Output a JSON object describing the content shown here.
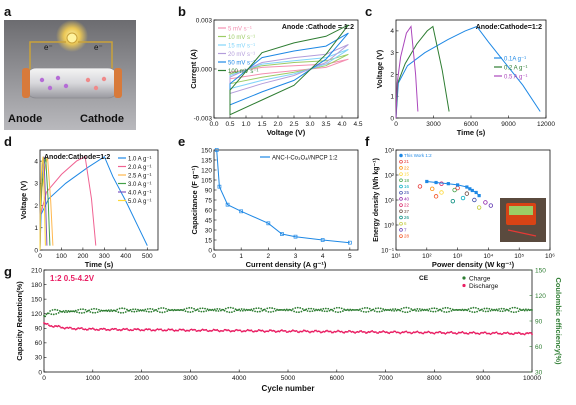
{
  "panel_letters": {
    "a": "a",
    "b": "b",
    "c": "c",
    "d": "d",
    "e": "e",
    "f": "f",
    "g": "g"
  },
  "schematic": {
    "anode_label": "Anode",
    "cathode_label": "Cathode",
    "electron_label": "e⁻"
  },
  "chart_data": [
    {
      "id": "b",
      "type": "line",
      "annotation": "Anode :Cathode = 1:2",
      "xlabel": "Voltage (V)",
      "ylabel": "Current (A)",
      "xlim": [
        0.0,
        4.5
      ],
      "ylim": [
        -0.003,
        0.003
      ],
      "xticks": [
        "0.0",
        "0.5",
        "1.0",
        "1.5",
        "2.0",
        "2.5",
        "3.0",
        "3.5",
        "4.0",
        "4.5"
      ],
      "yticks": [
        "-0.003",
        "0.000",
        "0.003"
      ],
      "legend": "top-left",
      "series": [
        {
          "name": "5 mV s⁻¹",
          "color": "#f48fb1",
          "x": [
            0.5,
            1.5,
            2.5,
            3.5,
            4.2,
            3.5,
            2.5,
            1.5,
            0.5
          ],
          "y": [
            -0.0002,
            0.0001,
            0.0002,
            0.0003,
            0.0006,
            0.0001,
            -0.0001,
            -0.0003,
            -0.0006
          ]
        },
        {
          "name": "10 mV s⁻¹",
          "color": "#9ccc65",
          "x": [
            0.5,
            1.5,
            2.5,
            3.5,
            4.2,
            3.5,
            2.5,
            1.5,
            0.5
          ],
          "y": [
            -0.0003,
            0.0002,
            0.0004,
            0.0005,
            0.0009,
            0.0002,
            -0.0002,
            -0.0005,
            -0.0009
          ]
        },
        {
          "name": "15 mV s⁻¹",
          "color": "#81d4fa",
          "x": [
            0.5,
            1.5,
            2.5,
            3.5,
            4.2,
            3.5,
            2.5,
            1.5,
            0.5
          ],
          "y": [
            -0.0004,
            0.0003,
            0.0005,
            0.0007,
            0.0012,
            0.0003,
            -0.0003,
            -0.0007,
            -0.0012
          ]
        },
        {
          "name": "20 mV s⁻¹",
          "color": "#b39ddb",
          "x": [
            0.5,
            1.5,
            2.5,
            3.5,
            4.2,
            3.5,
            2.5,
            1.5,
            0.5
          ],
          "y": [
            -0.0005,
            0.0004,
            0.0007,
            0.0009,
            0.0015,
            0.0004,
            -0.0004,
            -0.0009,
            -0.0015
          ]
        },
        {
          "name": "50 mV s⁻¹",
          "color": "#1e88e5",
          "x": [
            0.5,
            1.5,
            2.5,
            3.5,
            4.2,
            3.5,
            2.5,
            1.5,
            0.5
          ],
          "y": [
            -0.0009,
            0.0007,
            0.0011,
            0.0014,
            0.0022,
            0.0006,
            -0.0007,
            -0.0014,
            -0.0022
          ]
        },
        {
          "name": "100 mV s⁻¹",
          "color": "#2e7d32",
          "x": [
            0.5,
            1.5,
            2.5,
            3.5,
            4.2,
            3.5,
            2.5,
            1.5,
            0.5
          ],
          "y": [
            -0.0013,
            0.001,
            0.0016,
            0.002,
            0.0027,
            0.0009,
            -0.001,
            -0.0019,
            -0.0028
          ]
        }
      ]
    },
    {
      "id": "c",
      "type": "line",
      "annotation": "Anode:Cathode=1:2",
      "xlabel": "Time (s)",
      "ylabel": "Voltage (V)",
      "xlim": [
        0,
        13000
      ],
      "ylim": [
        0,
        4.5
      ],
      "xticks": [
        "0",
        "3000",
        "6000",
        "9000",
        "12000"
      ],
      "yticks": [
        "0",
        "1",
        "2",
        "3",
        "4"
      ],
      "legend": "right",
      "series": [
        {
          "name": "0.1A g⁻¹",
          "color": "#1e88e5",
          "x": [
            0,
            200,
            1000,
            2500,
            4500,
            6000,
            7000,
            8000,
            9500,
            11000,
            12500
          ],
          "y": [
            0,
            1.6,
            2.4,
            3.0,
            3.6,
            4.0,
            4.2,
            3.5,
            2.5,
            1.5,
            0.3
          ]
        },
        {
          "name": "0.2 A g⁻¹",
          "color": "#2e7d32",
          "x": [
            0,
            150,
            800,
            1800,
            2700,
            3200,
            4000,
            4600
          ],
          "y": [
            0,
            1.6,
            2.5,
            3.4,
            4.0,
            4.2,
            2.2,
            0.3
          ]
        },
        {
          "name": "0.5 A g⁻¹",
          "color": "#ab47bc",
          "x": [
            0,
            100,
            400,
            900,
            1300,
            1700,
            1900
          ],
          "y": [
            0,
            1.6,
            2.8,
            3.9,
            4.2,
            2.0,
            0.3
          ]
        }
      ]
    },
    {
      "id": "d",
      "type": "line",
      "annotation": "Anode:Cathode=1:2",
      "xlabel": "Time (s)",
      "ylabel": "Voltage (V)",
      "xlim": [
        0,
        550
      ],
      "ylim": [
        0,
        4.5
      ],
      "xticks": [
        "0",
        "100",
        "200",
        "300",
        "400",
        "500"
      ],
      "yticks": [
        "0",
        "1",
        "2",
        "3",
        "4"
      ],
      "legend": "top-right",
      "series": [
        {
          "name": "1.0 A g⁻¹",
          "color": "#1e88e5",
          "x": [
            0,
            5,
            40,
            120,
            220,
            300,
            340,
            400,
            460,
            500
          ],
          "y": [
            0,
            1.6,
            2.3,
            3.0,
            3.7,
            4.2,
            3.3,
            2.2,
            1.0,
            0.2
          ]
        },
        {
          "name": "2.0 A g⁻¹",
          "color": "#f06292",
          "x": [
            0,
            3,
            30,
            100,
            170,
            210,
            240,
            260
          ],
          "y": [
            0,
            1.6,
            2.6,
            3.4,
            4.0,
            4.2,
            2.3,
            0.2
          ]
        },
        {
          "name": "2.5 A g⁻¹",
          "color": "#ffb74d",
          "x": [
            0,
            2,
            10,
            25,
            35,
            50,
            60
          ],
          "y": [
            0,
            1.6,
            2.8,
            3.8,
            4.2,
            2.2,
            0.2
          ]
        },
        {
          "name": "3.0 A g⁻¹",
          "color": "#43a047",
          "x": [
            0,
            2,
            8,
            18,
            26,
            38,
            46
          ],
          "y": [
            0,
            1.6,
            2.8,
            3.8,
            4.2,
            2.2,
            0.2
          ]
        },
        {
          "name": "4.0 A g⁻¹",
          "color": "#7e57c2",
          "x": [
            0,
            1,
            5,
            12,
            18,
            26,
            32
          ],
          "y": [
            0,
            1.6,
            2.9,
            3.9,
            4.2,
            2.2,
            0.2
          ]
        },
        {
          "name": "5.0 A g⁻¹",
          "color": "#fdd835",
          "x": [
            0,
            1,
            4,
            9,
            14,
            20,
            25
          ],
          "y": [
            0,
            1.6,
            2.9,
            3.9,
            4.2,
            2.2,
            0.2
          ]
        }
      ]
    },
    {
      "id": "e",
      "type": "line",
      "legend_label": "ANC-I-Co₃O₄//NPCP 1:2",
      "xlabel": "Current density (A g⁻¹)",
      "ylabel": "Capacitance (F g⁻¹)",
      "xlim": [
        0,
        5.3
      ],
      "ylim": [
        0,
        150
      ],
      "xticks": [
        "0",
        "1",
        "2",
        "3",
        "4",
        "5"
      ],
      "yticks": [
        "0",
        "15",
        "30",
        "45",
        "60",
        "75",
        "90",
        "105",
        "120",
        "135",
        "150"
      ],
      "color": "#1e88e5",
      "x": [
        0.1,
        0.2,
        0.5,
        1.0,
        2.0,
        2.5,
        3.0,
        4.0,
        5.0
      ],
      "y": [
        150,
        95,
        68,
        58,
        40,
        24,
        20,
        15,
        11
      ]
    },
    {
      "id": "f",
      "type": "scatter",
      "xlabel": "Power density (W kg⁻¹)",
      "ylabel": "Energy density (Wh kg⁻¹)",
      "xscale": "log",
      "yscale": "log",
      "xlim": [
        10,
        1000000
      ],
      "ylim": [
        0.1,
        1000
      ],
      "xticks": [
        "10¹",
        "10²",
        "10³",
        "10⁴",
        "10⁵",
        "10⁶"
      ],
      "yticks": [
        "10⁻¹",
        "10⁰",
        "10¹",
        "10²",
        "10³"
      ],
      "highlight": {
        "name": "This Work 1:2",
        "color": "#1e88e5",
        "x": [
          100,
          200,
          500,
          1000,
          2000,
          2500,
          3000,
          4000,
          5000
        ],
        "y": [
          55,
          50,
          45,
          40,
          33,
          28,
          24,
          20,
          15
        ]
      },
      "legend_entries": [
        "This Work 1:2",
        "21",
        "22",
        "15",
        "18",
        "16",
        "25",
        "40",
        "22",
        "37",
        "26",
        "6",
        "7",
        "28"
      ],
      "legend_colors": [
        "#1e88e5",
        "#e53935",
        "#fb8c00",
        "#fdd835",
        "#43a047",
        "#00acc1",
        "#3949ab",
        "#8e24aa",
        "#d81b60",
        "#6d4c41",
        "#00897b",
        "#c0ca33",
        "#5e35b1",
        "#f4511e"
      ],
      "refs": [
        {
          "x": 60,
          "y": 35
        },
        {
          "x": 150,
          "y": 28
        },
        {
          "x": 300,
          "y": 20
        },
        {
          "x": 800,
          "y": 25
        },
        {
          "x": 1500,
          "y": 12
        },
        {
          "x": 3500,
          "y": 10
        },
        {
          "x": 8000,
          "y": 8
        },
        {
          "x": 300,
          "y": 45
        },
        {
          "x": 2000,
          "y": 18
        },
        {
          "x": 700,
          "y": 9
        },
        {
          "x": 5000,
          "y": 5
        },
        {
          "x": 12000,
          "y": 6
        },
        {
          "x": 200,
          "y": 14
        },
        {
          "x": 1000,
          "y": 30
        }
      ]
    },
    {
      "id": "g",
      "type": "scatter",
      "annotation": "1:2 0.5-4.2V",
      "xlabel": "Cycle number",
      "ylabel": "Capacity Retention(%)",
      "ylabel_right": "Coulombic efficiency(%)",
      "xlim": [
        0,
        10000
      ],
      "ylim": [
        0,
        210
      ],
      "ylim_right": [
        30,
        150
      ],
      "xticks": [
        "0",
        "1000",
        "2000",
        "3000",
        "4000",
        "5000",
        "6000",
        "7000",
        "8000",
        "9000",
        "10000"
      ],
      "yticks": [
        "0",
        "30",
        "60",
        "90",
        "120",
        "150",
        "180",
        "210"
      ],
      "yticks_right": [
        "30",
        "60",
        "90",
        "120",
        "150"
      ],
      "legend_title": "CE",
      "legend": [
        {
          "name": "Charge",
          "color": "#2e7d32"
        },
        {
          "name": "Discharge",
          "color": "#e91e63"
        }
      ],
      "ce": {
        "color": "#2e7d32",
        "x": [
          0,
          100,
          300,
          1000,
          3000,
          5000,
          8000,
          10000
        ],
        "y": [
          95,
          100,
          101,
          102,
          103,
          103,
          103,
          103
        ]
      },
      "retention": {
        "color": "#e91e63",
        "x": [
          0,
          100,
          300,
          500,
          1000,
          2000,
          3000,
          4000,
          5000,
          6000,
          7000,
          8000,
          9000,
          10000
        ],
        "y": [
          100,
          96,
          93,
          90,
          88,
          87,
          86,
          85,
          84,
          83,
          82,
          81,
          80,
          79
        ]
      }
    }
  ]
}
